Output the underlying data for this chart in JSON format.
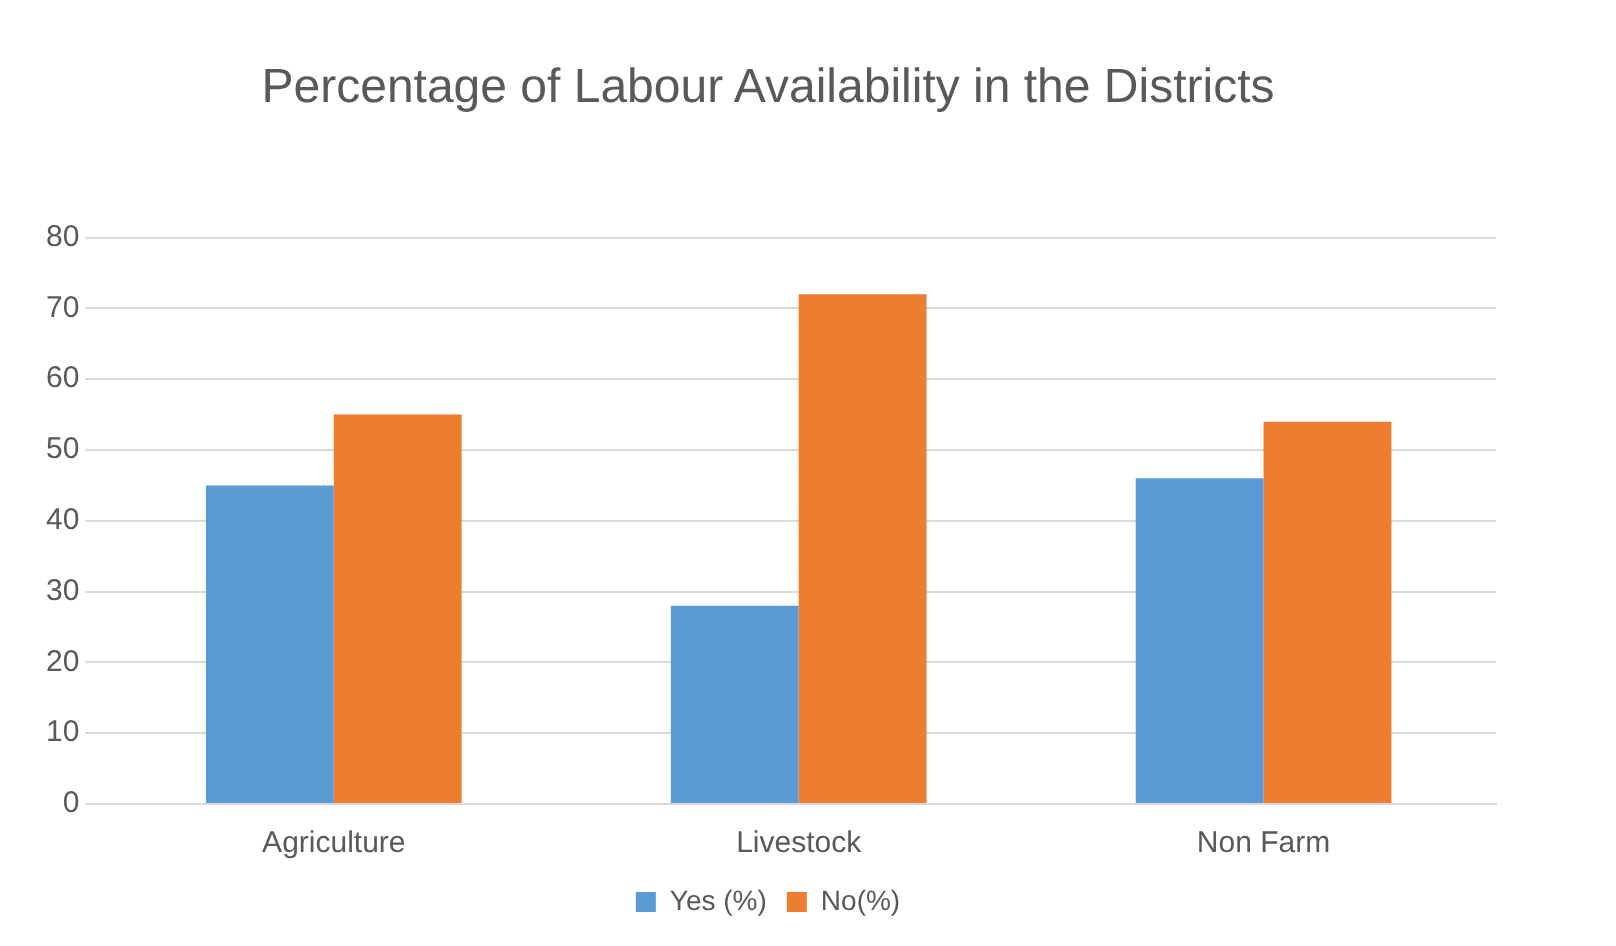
{
  "chart_data": {
    "type": "bar",
    "title": "Percentage of Labour Availability in the Districts",
    "categories": [
      "Agriculture",
      "Livestock",
      "Non Farm"
    ],
    "series": [
      {
        "name": "Yes (%)",
        "color": "#5b9bd5",
        "values": [
          45,
          28,
          46
        ]
      },
      {
        "name": "No(%)",
        "color": "#ed7d31",
        "values": [
          55,
          72,
          54
        ]
      }
    ],
    "ylim": [
      0,
      80
    ],
    "yticks": [
      0,
      10,
      20,
      30,
      40,
      50,
      60,
      70,
      80
    ],
    "grid": "y",
    "legend": "bottom"
  }
}
